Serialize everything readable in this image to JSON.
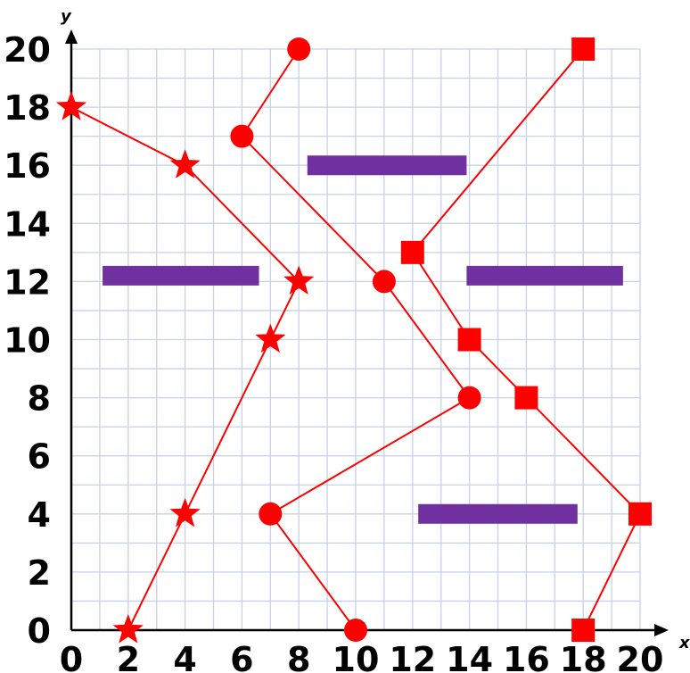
{
  "chart_data": {
    "type": "scatter",
    "title": "",
    "xlabel": "x",
    "ylabel": "y",
    "xlim": [
      0,
      20
    ],
    "ylim": [
      0,
      20
    ],
    "grid": true,
    "x_ticks": [
      "0",
      "2",
      "4",
      "6",
      "8",
      "10",
      "12",
      "14",
      "16",
      "18",
      "20"
    ],
    "y_ticks": [
      "0",
      "2",
      "4",
      "6",
      "8",
      "10",
      "12",
      "14",
      "16",
      "18",
      "20"
    ],
    "line_color": "#ff0000",
    "segment_color": "#7030a0",
    "series": [
      {
        "marker": "star",
        "connected": true,
        "points": [
          [
            0,
            18
          ],
          [
            4,
            16
          ],
          [
            8,
            12
          ],
          [
            7,
            10
          ],
          [
            4,
            4
          ],
          [
            2,
            0
          ]
        ]
      },
      {
        "marker": "circle",
        "connected": true,
        "points": [
          [
            8,
            20
          ],
          [
            6,
            17
          ],
          [
            11,
            12
          ],
          [
            14,
            8
          ],
          [
            7,
            4
          ],
          [
            10,
            0
          ]
        ]
      },
      {
        "marker": "square",
        "connected": true,
        "points": [
          [
            18,
            20
          ],
          [
            12,
            13
          ],
          [
            14,
            10
          ],
          [
            16,
            8
          ],
          [
            20,
            4
          ],
          [
            18,
            0
          ]
        ]
      }
    ],
    "segments": [
      {
        "x": [
          8.3,
          13.9
        ],
        "y": 16.0
      },
      {
        "x": [
          1.1,
          6.6
        ],
        "y": 12.2
      },
      {
        "x": [
          13.9,
          19.4
        ],
        "y": 12.2
      },
      {
        "x": [
          12.2,
          17.8
        ],
        "y": 4.0
      }
    ]
  }
}
